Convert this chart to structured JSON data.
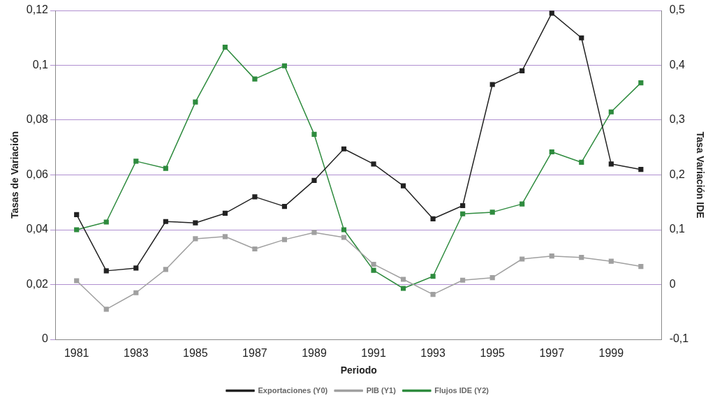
{
  "chart_data": {
    "type": "line",
    "xlabel": "Periodo",
    "ylabel": "Tasas de Variación",
    "y2label": "Tasa Variación IDE",
    "x": [
      1981,
      1982,
      1983,
      1984,
      1985,
      1986,
      1987,
      1988,
      1989,
      1990,
      1991,
      1992,
      1993,
      1994,
      1995,
      1996,
      1997,
      1998,
      1999,
      2000
    ],
    "series": [
      {
        "name": "Exportaciones (Y0)",
        "color": "#222222",
        "values": [
          0.0455,
          0.025,
          0.026,
          0.043,
          0.0425,
          0.046,
          0.052,
          0.0485,
          0.058,
          0.0695,
          0.064,
          0.056,
          0.044,
          0.0488,
          0.093,
          0.098,
          0.119,
          0.11,
          0.064,
          0.062
        ]
      },
      {
        "name": "PIB (Y1)",
        "color": "#a0a0a0",
        "values": [
          0.0214,
          0.011,
          0.017,
          0.0255,
          0.0367,
          0.0375,
          0.033,
          0.0364,
          0.039,
          0.0372,
          0.0274,
          0.0219,
          0.0164,
          0.0216,
          0.0225,
          0.0293,
          0.0304,
          0.0299,
          0.0285,
          0.0266
        ]
      },
      {
        "name": "Flujos IDE (Y2)",
        "color": "#2e8b3e",
        "axis": "y2",
        "values": [
          0.1,
          0.114,
          0.225,
          0.212,
          0.333,
          0.433,
          0.375,
          0.399,
          0.274,
          0.1,
          0.026,
          -0.007,
          0.015,
          0.129,
          0.132,
          0.147,
          0.242,
          0.223,
          0.315,
          0.368
        ]
      }
    ],
    "xlim": [
      1980.3,
      2000.7
    ],
    "xticks": [
      1981,
      1983,
      1985,
      1987,
      1989,
      1991,
      1993,
      1995,
      1997,
      1999
    ],
    "ylim": [
      0,
      0.12
    ],
    "yticks": [
      {
        "value": 0,
        "label": "0"
      },
      {
        "value": 0.02,
        "label": "0,02"
      },
      {
        "value": 0.04,
        "label": "0,04"
      },
      {
        "value": 0.06,
        "label": "0,06"
      },
      {
        "value": 0.08,
        "label": "0,08"
      },
      {
        "value": 0.1,
        "label": "0,1"
      },
      {
        "value": 0.12,
        "label": "0,12"
      }
    ],
    "y2lim": [
      -0.1,
      0.5
    ],
    "y2ticks": [
      {
        "value": -0.1,
        "label": "-0,1"
      },
      {
        "value": 0,
        "label": "0"
      },
      {
        "value": 0.1,
        "label": "0,1"
      },
      {
        "value": 0.2,
        "label": "0,2"
      },
      {
        "value": 0.3,
        "label": "0,3"
      },
      {
        "value": 0.4,
        "label": "0,4"
      },
      {
        "value": 0.5,
        "label": "0,5"
      }
    ],
    "grid": "y",
    "legend": "bottom",
    "marker": "square",
    "line_style": "solid"
  }
}
